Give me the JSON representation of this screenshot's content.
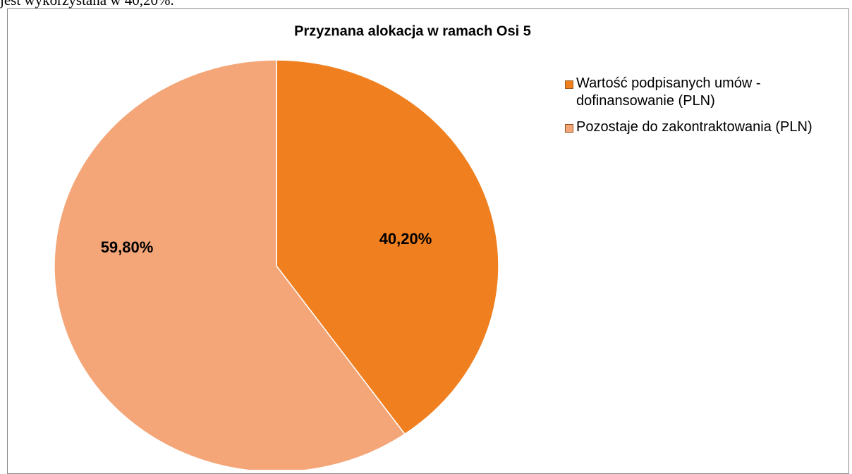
{
  "text_above": "jest wykorzystana w 40,20%.",
  "chart_data": {
    "type": "pie",
    "title": "Przyznana alokacja w ramach Osi 5",
    "categories": [
      "Wartość podpisanych umów - dofinansowanie (PLN)",
      "Pozostaje do zakontraktowania (PLN)"
    ],
    "values": [
      40.2,
      59.8
    ],
    "value_labels": [
      "40,20%",
      "59,80%"
    ],
    "colors": [
      "#ef7f1f",
      "#f4a678"
    ],
    "legend": "right"
  }
}
